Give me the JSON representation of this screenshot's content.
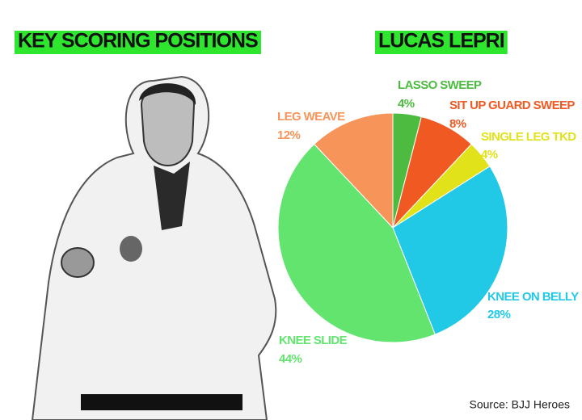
{
  "chart_data": {
    "type": "pie",
    "title": "LUCAS LEPRI",
    "header": "KEY SCORING POSITIONS",
    "source": "Source: BJJ Heroes",
    "categories": [
      "LASSO SWEEP",
      "SIT UP GUARD SWEEP",
      "SINGLE LEG TKD",
      "KNEE ON BELLY",
      "KNEE SLIDE",
      "LEG WEAVE"
    ],
    "values": [
      4,
      8,
      4,
      28,
      44,
      12
    ],
    "value_labels": [
      "4%",
      "8%",
      "4%",
      "28%",
      "44%",
      "12%"
    ],
    "colors": [
      "#4cbb3f",
      "#f05a22",
      "#e2e21b",
      "#22c9e6",
      "#62e46e",
      "#f7945a"
    ],
    "highlight_color": "#2ee62e"
  }
}
